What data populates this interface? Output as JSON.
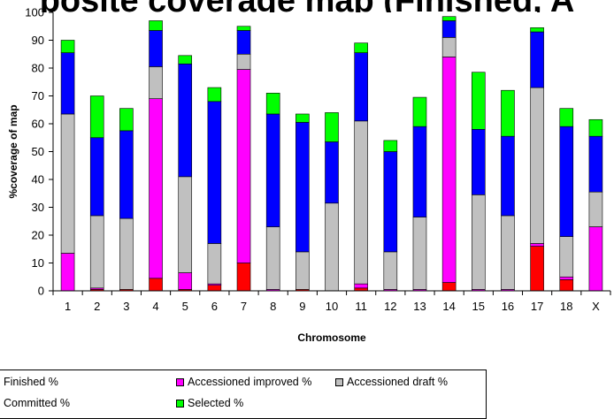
{
  "title_fragment": "posite coverage map (Finished, A",
  "chart_data": {
    "type": "bar",
    "stacked": true,
    "xlabel": "Chromosome",
    "ylabel": "%coverage of map",
    "ylim": [
      0,
      100
    ],
    "yticks": [
      0,
      10,
      20,
      30,
      40,
      50,
      60,
      70,
      80,
      90,
      100
    ],
    "grid": false,
    "legend_position": "bottom",
    "categories": [
      "1",
      "2",
      "3",
      "4",
      "5",
      "6",
      "7",
      "8",
      "9",
      "10",
      "11",
      "12",
      "13",
      "14",
      "15",
      "16",
      "17",
      "18",
      "X"
    ],
    "series": [
      {
        "name": "Finished %",
        "color": "#ff0000",
        "values": [
          0,
          0.5,
          0.5,
          4.5,
          0.5,
          2,
          10,
          0,
          0.5,
          0,
          1,
          0,
          0,
          3,
          0,
          0,
          16,
          4,
          0
        ]
      },
      {
        "name": "Accessioned improved %",
        "color": "#ff00ff",
        "values": [
          13.5,
          0.5,
          0,
          64.5,
          6,
          0.5,
          69.5,
          0.5,
          0,
          0,
          1.5,
          0.5,
          0.5,
          81,
          0.5,
          0.5,
          1,
          1,
          23
        ]
      },
      {
        "name": "Accessioned draft %",
        "color": "#c0c0c0",
        "values": [
          50,
          26,
          25.5,
          11.5,
          34.5,
          14.5,
          5.5,
          22.5,
          13.5,
          31.5,
          58.5,
          13.5,
          26,
          7,
          34,
          26.5,
          56,
          14.5,
          12.5
        ]
      },
      {
        "name": "Committed %",
        "color": "#0000ff",
        "values": [
          22,
          28,
          31.5,
          13,
          40.5,
          51,
          8.5,
          40.5,
          46.5,
          22,
          24.5,
          36,
          32.5,
          6,
          23.5,
          28.5,
          20,
          39.5,
          20
        ]
      },
      {
        "name": "Selected %",
        "color": "#00ff00",
        "values": [
          4.5,
          15,
          8,
          3.5,
          3,
          5,
          1.5,
          7.5,
          3,
          10.5,
          3.5,
          4,
          10.5,
          1.5,
          20.5,
          16.5,
          1.5,
          6.5,
          6
        ]
      }
    ]
  }
}
